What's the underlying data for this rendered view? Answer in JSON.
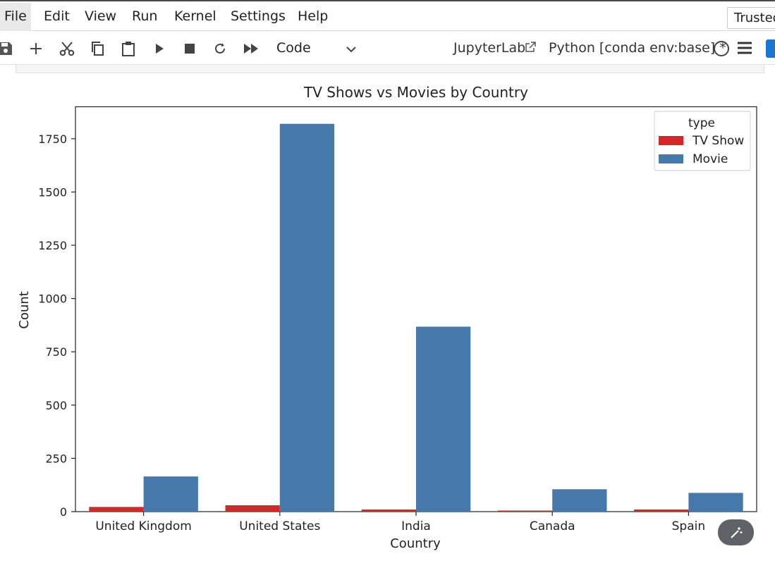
{
  "menubar": {
    "items": [
      "File",
      "Edit",
      "View",
      "Run",
      "Kernel",
      "Settings",
      "Help"
    ],
    "trusted_label": "Trusted"
  },
  "toolbar": {
    "icons": [
      "save-icon",
      "add-cell-icon",
      "cut-icon",
      "copy-icon",
      "paste-icon",
      "run-icon",
      "stop-icon",
      "restart-icon",
      "fast-forward-icon"
    ],
    "cell_type": "Code",
    "jupyterlab_label": "JupyterLab",
    "kernel_label": "Python [conda env:base] *"
  },
  "colors": {
    "tv_show": "#d62728",
    "movie": "#4579ab",
    "magic_button": "#5f6368"
  },
  "chart_data": {
    "type": "bar",
    "title": "TV Shows vs Movies by Country",
    "xlabel": "Country",
    "ylabel": "Count",
    "categories": [
      "United Kingdom",
      "United States",
      "India",
      "Canada",
      "Spain"
    ],
    "series": [
      {
        "name": "TV Show",
        "values": [
          22,
          30,
          10,
          5,
          10
        ]
      },
      {
        "name": "Movie",
        "values": [
          165,
          1820,
          868,
          105,
          88
        ]
      }
    ],
    "ylim": [
      0,
      1900
    ],
    "yticks": [
      0,
      250,
      500,
      750,
      1000,
      1250,
      1500,
      1750
    ],
    "legend": {
      "title": "type",
      "position": "top-right"
    },
    "grid": false
  }
}
